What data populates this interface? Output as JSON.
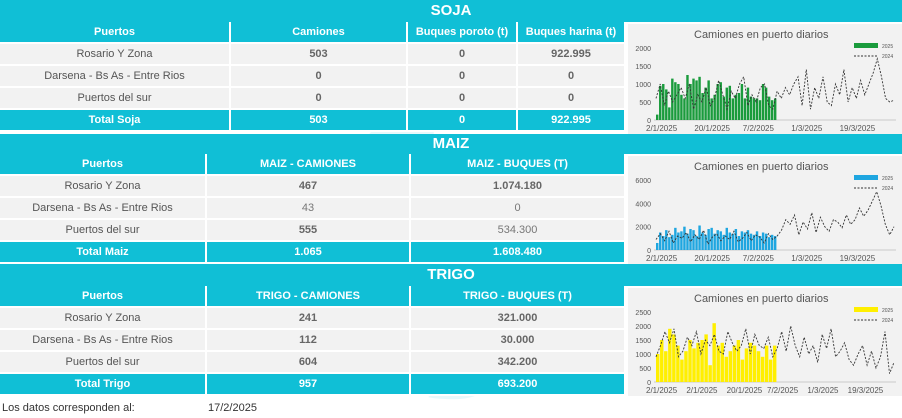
{
  "soja": {
    "title": "SOJA",
    "headers": [
      "Puertos",
      "Camiones",
      "Buques poroto (t)",
      "Buques harina (t)"
    ],
    "rows": [
      {
        "puerto": "Rosario Y Zona",
        "a": "503",
        "b": "0",
        "c": "922.995"
      },
      {
        "puerto": "Darsena - Bs As - Entre Rios",
        "a": "0",
        "b": "0",
        "c": "0"
      },
      {
        "puerto": "Puertos del sur",
        "a": "0",
        "b": "0",
        "c": "0"
      }
    ],
    "total": {
      "label": "Total Soja",
      "a": "503",
      "b": "0",
      "c": "922.995"
    }
  },
  "maiz": {
    "title": "MAIZ",
    "headers": [
      "Puertos",
      "MAIZ - CAMIONES",
      "MAIZ - BUQUES (T)"
    ],
    "rows": [
      {
        "puerto": "Rosario Y Zona",
        "a": "467",
        "b": "1.074.180"
      },
      {
        "puerto": "Darsena - Bs As - Entre Rios",
        "a": "43",
        "b": "0"
      },
      {
        "puerto": "Puertos del sur",
        "a": "555",
        "b": "534.300"
      }
    ],
    "total": {
      "label": "Total Maiz",
      "a": "1.065",
      "b": "1.608.480"
    }
  },
  "trigo": {
    "title": "TRIGO",
    "headers": [
      "Puertos",
      "TRIGO - CAMIONES",
      "TRIGO - BUQUES (T)"
    ],
    "rows": [
      {
        "puerto": "Rosario Y Zona",
        "a": "241",
        "b": "321.000"
      },
      {
        "puerto": "Darsena - Bs As - Entre Rios",
        "a": "112",
        "b": "30.000"
      },
      {
        "puerto": "Puertos del sur",
        "a": "604",
        "b": "342.200"
      }
    ],
    "total": {
      "label": "Total Trigo",
      "a": "957",
      "b": "693.200"
    }
  },
  "footer": {
    "label": "Los datos corresponden al:",
    "date": "17/2/2025"
  },
  "chart_data": [
    {
      "type": "bar",
      "title": "Camiones en puerto diarios",
      "bar_color": "#1a9b3c",
      "ylim": [
        0,
        2000
      ],
      "yticks": [
        "2000",
        "1500",
        "1000",
        "500",
        "0"
      ],
      "xticks": [
        "2/1/2025",
        "20/1/2025",
        "7/2/2025",
        "1/3/2025",
        "19/3/2025"
      ],
      "legend": [
        "2025",
        "2024"
      ],
      "series": [
        {
          "name": "2025",
          "values": [
            150,
            950,
            1000,
            850,
            350,
            1150,
            1050,
            1000,
            700,
            600,
            1250,
            1000,
            1150,
            1100,
            1200,
            750,
            900,
            1100,
            600,
            700,
            1000,
            1050,
            650,
            900,
            950,
            600,
            700,
            750,
            1000,
            600,
            900,
            650,
            600,
            600,
            550,
            1000,
            900,
            650,
            550,
            600
          ]
        },
        {
          "name": "2024",
          "values": [
            600,
            1000,
            400,
            800,
            500,
            700,
            900,
            600,
            1000,
            300,
            700,
            500,
            900,
            400,
            600,
            1100,
            700,
            300,
            800,
            600,
            1000,
            1200,
            400,
            700,
            500,
            900,
            1000,
            400,
            300,
            800,
            600,
            900,
            700,
            1000,
            1200,
            400,
            1400,
            300,
            900,
            600,
            1200,
            500,
            400,
            1000,
            700,
            1400,
            500,
            900,
            600,
            1100,
            700,
            1000,
            1300,
            1700,
            1200,
            600,
            500,
            550
          ]
        }
      ]
    },
    {
      "type": "bar",
      "title": "Camiones en puerto diarios",
      "bar_color": "#1fa6e0",
      "ylim": [
        0,
        6000
      ],
      "yticks": [
        "6000",
        "4000",
        "2000",
        "0"
      ],
      "xticks": [
        "2/1/2025",
        "20/1/2025",
        "7/2/2025",
        "1/3/2025",
        "19/3/2025"
      ],
      "legend": [
        "2025",
        "2024"
      ],
      "series": [
        {
          "name": "2025",
          "values": [
            600,
            1500,
            1200,
            1700,
            1100,
            1300,
            1900,
            1500,
            1600,
            2000,
            1400,
            1800,
            1700,
            1200,
            2100,
            1500,
            1300,
            1800,
            1900,
            1400,
            1700,
            1600,
            1300,
            1900,
            1500,
            1400,
            1800,
            1200,
            1600,
            1500,
            1700,
            1400,
            1300,
            1600,
            1200,
            1500,
            1400,
            1100,
            1300,
            1200
          ]
        },
        {
          "name": "2024",
          "values": [
            900,
            1400,
            800,
            1600,
            600,
            1200,
            1000,
            1500,
            700,
            1300,
            900,
            1700,
            500,
            1100,
            1400,
            800,
            1200,
            900,
            1600,
            700,
            1000,
            1500,
            800,
            1300,
            1100,
            600,
            1400,
            900,
            1200,
            1700,
            2600,
            2200,
            3000,
            1300,
            2400,
            1800,
            3200,
            1500,
            2800,
            2000,
            1600,
            2600,
            2400,
            1900,
            3000,
            2200,
            2600,
            3600,
            2900,
            3400,
            4200,
            5000,
            3800,
            2200,
            1300,
            2000
          ]
        }
      ]
    },
    {
      "type": "bar",
      "title": "Camiones en puerto diarios",
      "bar_color": "#ffef00",
      "ylim": [
        0,
        2500
      ],
      "yticks": [
        "2500",
        "2000",
        "1500",
        "1000",
        "500",
        "0"
      ],
      "xticks": [
        "2/1/2025",
        "2/1/2025",
        "20/1/2025",
        "7/2/2025",
        "1/3/2025",
        "19/3/2025"
      ],
      "legend": [
        "2025",
        "2024"
      ],
      "series": [
        {
          "name": "2025",
          "values": [
            1000,
            1500,
            1100,
            1900,
            1700,
            1300,
            800,
            1100,
            1500,
            1200,
            1400,
            1500,
            1700,
            600,
            2100,
            1300,
            1400,
            900,
            1100,
            1300,
            1500,
            800,
            1200,
            1400,
            1300,
            1100,
            900,
            1300,
            800,
            1300
          ]
        },
        {
          "name": "2024",
          "values": [
            900,
            1300,
            1800,
            1400,
            1900,
            900,
            1100,
            1600,
            1300,
            1800,
            1000,
            1500,
            1300,
            1700,
            1100,
            1000,
            1800,
            1400,
            1100,
            1300,
            1900,
            1000,
            1700,
            1300,
            1200,
            1600,
            900,
            1200,
            1800,
            1100,
            2000,
            1300,
            900,
            1600,
            1000,
            1300,
            700,
            1700,
            1200,
            1900,
            900,
            1100,
            1400,
            800,
            600,
            1000,
            1300,
            600,
            1100,
            500,
            900,
            1800,
            300,
            700
          ]
        }
      ]
    }
  ]
}
